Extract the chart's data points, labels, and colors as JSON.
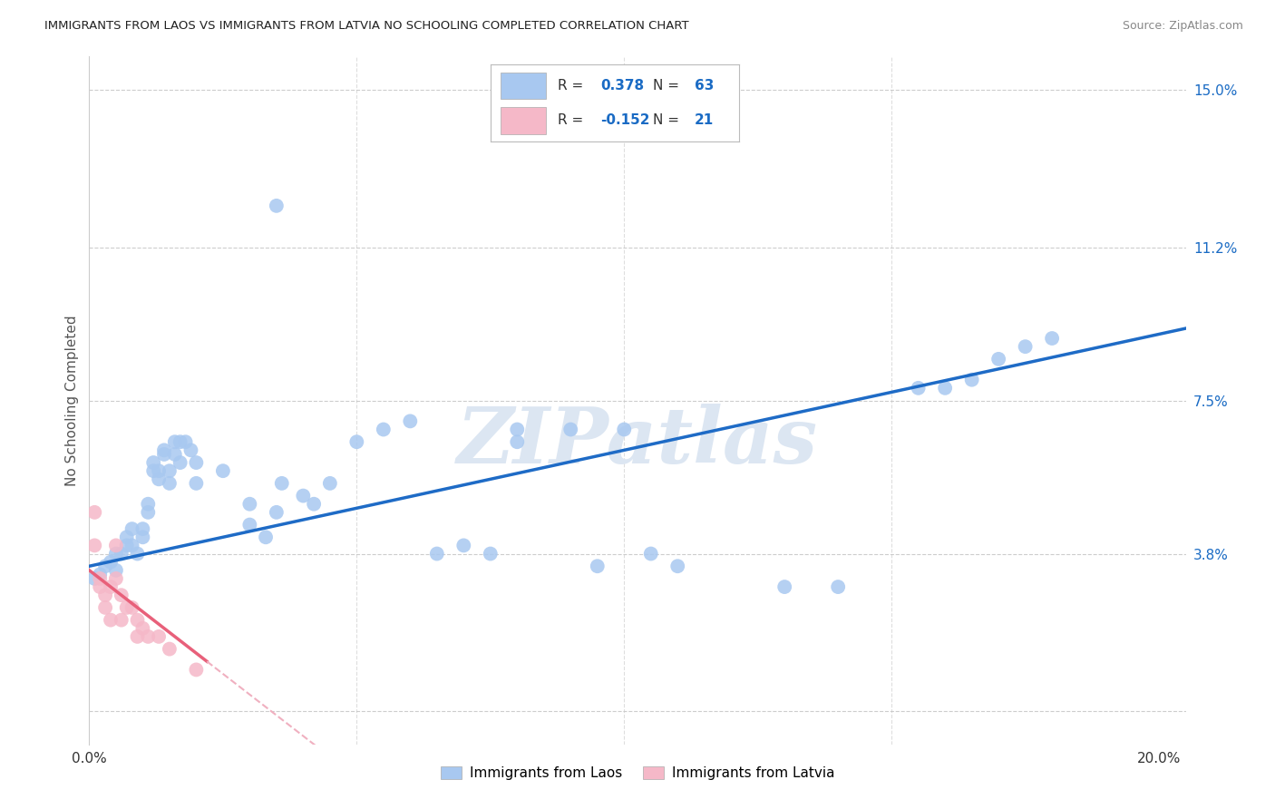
{
  "title": "IMMIGRANTS FROM LAOS VS IMMIGRANTS FROM LATVIA NO SCHOOLING COMPLETED CORRELATION CHART",
  "source": "Source: ZipAtlas.com",
  "ylabel": "No Schooling Completed",
  "xlim": [
    0.0,
    0.205
  ],
  "ylim": [
    -0.008,
    0.158
  ],
  "xticks": [
    0.0,
    0.05,
    0.1,
    0.15,
    0.2
  ],
  "xtick_labels": [
    "0.0%",
    "",
    "",
    "",
    "20.0%"
  ],
  "yticks_right": [
    0.0,
    0.038,
    0.075,
    0.112,
    0.15
  ],
  "ytick_labels_right": [
    "",
    "3.8%",
    "7.5%",
    "11.2%",
    "15.0%"
  ],
  "laos_color": "#a8c8f0",
  "latvia_color": "#f5b8c8",
  "laos_line_color": "#1e6bc6",
  "latvia_line_color": "#e8607a",
  "latvia_dash_color": "#f0b0c0",
  "background_color": "#ffffff",
  "grid_color": "#c8c8c8",
  "watermark_color": "#dce6f2",
  "laos_label": "Immigrants from Laos",
  "latvia_label": "Immigrants from Latvia",
  "legend_text_color": "#1a6bc4",
  "legend_R_laos": "0.378",
  "legend_N_laos": "63",
  "legend_R_latvia": "-0.152",
  "legend_N_latvia": "21",
  "laos_pts": [
    [
      0.001,
      0.032
    ],
    [
      0.002,
      0.033
    ],
    [
      0.003,
      0.035
    ],
    [
      0.004,
      0.036
    ],
    [
      0.005,
      0.034
    ],
    [
      0.005,
      0.038
    ],
    [
      0.006,
      0.038
    ],
    [
      0.007,
      0.04
    ],
    [
      0.007,
      0.042
    ],
    [
      0.008,
      0.04
    ],
    [
      0.008,
      0.044
    ],
    [
      0.009,
      0.038
    ],
    [
      0.01,
      0.042
    ],
    [
      0.01,
      0.044
    ],
    [
      0.011,
      0.048
    ],
    [
      0.011,
      0.05
    ],
    [
      0.012,
      0.058
    ],
    [
      0.012,
      0.06
    ],
    [
      0.013,
      0.056
    ],
    [
      0.013,
      0.058
    ],
    [
      0.014,
      0.062
    ],
    [
      0.014,
      0.063
    ],
    [
      0.015,
      0.055
    ],
    [
      0.015,
      0.058
    ],
    [
      0.016,
      0.062
    ],
    [
      0.016,
      0.065
    ],
    [
      0.017,
      0.06
    ],
    [
      0.017,
      0.065
    ],
    [
      0.018,
      0.065
    ],
    [
      0.019,
      0.063
    ],
    [
      0.02,
      0.06
    ],
    [
      0.02,
      0.055
    ],
    [
      0.035,
      0.122
    ],
    [
      0.025,
      0.058
    ],
    [
      0.03,
      0.05
    ],
    [
      0.03,
      0.045
    ],
    [
      0.033,
      0.042
    ],
    [
      0.035,
      0.048
    ],
    [
      0.036,
      0.055
    ],
    [
      0.04,
      0.052
    ],
    [
      0.042,
      0.05
    ],
    [
      0.045,
      0.055
    ],
    [
      0.05,
      0.065
    ],
    [
      0.055,
      0.068
    ],
    [
      0.06,
      0.07
    ],
    [
      0.065,
      0.038
    ],
    [
      0.07,
      0.04
    ],
    [
      0.075,
      0.038
    ],
    [
      0.08,
      0.065
    ],
    [
      0.08,
      0.068
    ],
    [
      0.09,
      0.068
    ],
    [
      0.095,
      0.035
    ],
    [
      0.1,
      0.068
    ],
    [
      0.105,
      0.038
    ],
    [
      0.11,
      0.035
    ],
    [
      0.13,
      0.03
    ],
    [
      0.14,
      0.03
    ],
    [
      0.155,
      0.078
    ],
    [
      0.16,
      0.078
    ],
    [
      0.165,
      0.08
    ],
    [
      0.17,
      0.085
    ],
    [
      0.175,
      0.088
    ],
    [
      0.18,
      0.09
    ]
  ],
  "latvia_pts": [
    [
      0.001,
      0.048
    ],
    [
      0.001,
      0.04
    ],
    [
      0.002,
      0.03
    ],
    [
      0.002,
      0.032
    ],
    [
      0.003,
      0.028
    ],
    [
      0.003,
      0.025
    ],
    [
      0.004,
      0.03
    ],
    [
      0.004,
      0.022
    ],
    [
      0.005,
      0.04
    ],
    [
      0.005,
      0.032
    ],
    [
      0.006,
      0.028
    ],
    [
      0.006,
      0.022
    ],
    [
      0.007,
      0.025
    ],
    [
      0.008,
      0.025
    ],
    [
      0.009,
      0.022
    ],
    [
      0.009,
      0.018
    ],
    [
      0.01,
      0.02
    ],
    [
      0.011,
      0.018
    ],
    [
      0.013,
      0.018
    ],
    [
      0.015,
      0.015
    ],
    [
      0.02,
      0.01
    ]
  ]
}
